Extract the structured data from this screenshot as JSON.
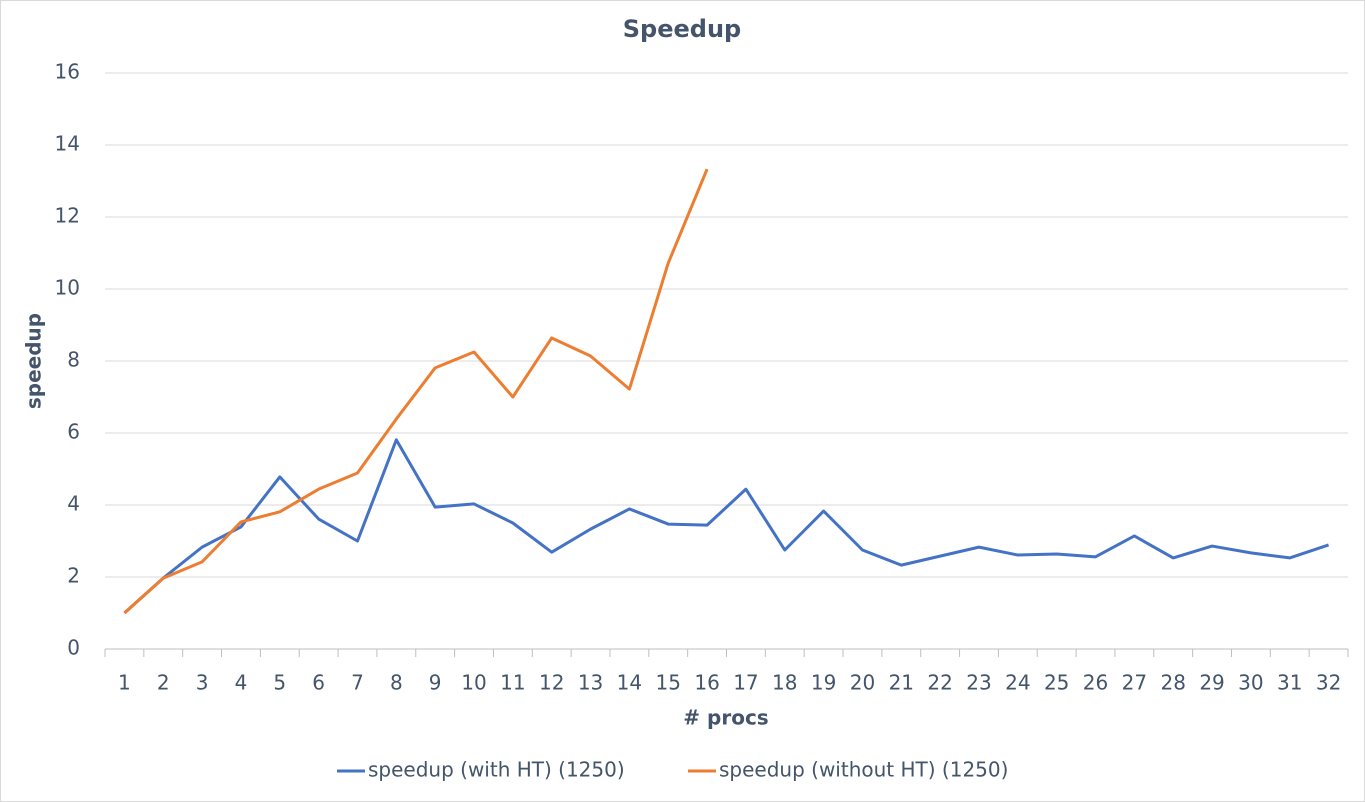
{
  "chart_data": {
    "type": "line",
    "title": "Speedup",
    "x_label": "# procs",
    "y_label": "speedup",
    "categories": [
      "1",
      "2",
      "3",
      "4",
      "5",
      "6",
      "7",
      "8",
      "9",
      "10",
      "11",
      "12",
      "13",
      "14",
      "15",
      "16",
      "17",
      "18",
      "19",
      "20",
      "21",
      "22",
      "23",
      "24",
      "25",
      "26",
      "27",
      "28",
      "29",
      "30",
      "31",
      "32"
    ],
    "series": [
      {
        "name": "speedup (with HT) (1250)",
        "color": "#4472c4",
        "values": [
          1.0,
          1.97,
          2.83,
          3.39,
          4.78,
          3.61,
          3.0,
          5.81,
          3.94,
          4.03,
          3.5,
          2.69,
          3.33,
          3.89,
          3.47,
          3.44,
          4.44,
          2.75,
          3.83,
          2.75,
          2.33,
          2.58,
          2.83,
          2.61,
          2.64,
          2.56,
          3.14,
          2.53,
          2.86,
          2.67,
          2.53,
          2.89
        ]
      },
      {
        "name": "speedup (without HT) (1250)",
        "color": "#ed7d31",
        "values": [
          1.0,
          1.97,
          2.42,
          3.53,
          3.81,
          4.44,
          4.89,
          6.39,
          7.81,
          8.25,
          7.0,
          8.64,
          8.14,
          7.22,
          10.72,
          13.33,
          null,
          null,
          null,
          null,
          null,
          null,
          null,
          null,
          null,
          null,
          null,
          null,
          null,
          null,
          null,
          null
        ]
      }
    ],
    "ylim": [
      0,
      16
    ],
    "yticks": [
      0,
      2,
      4,
      6,
      8,
      10,
      12,
      14,
      16
    ],
    "grid": true,
    "legend": "bottom"
  }
}
